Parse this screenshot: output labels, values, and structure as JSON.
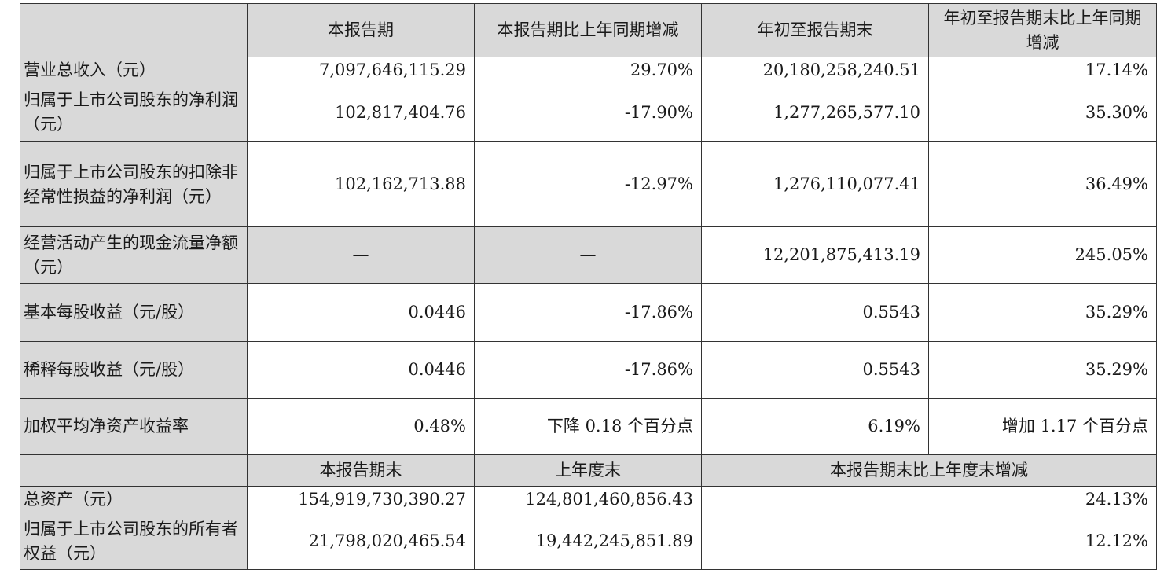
{
  "header": {
    "col1": "本报告期",
    "col2": "本报告期比上年同期增减",
    "col3": "年初至报告期末",
    "col4": "年初至报告期末比上年同期增减"
  },
  "rows": [
    {
      "label": "营业总收入（元）",
      "v1": "7,097,646,115.29",
      "v2": "29.70%",
      "v3": "20,180,258,240.51",
      "v4": "17.14%"
    },
    {
      "label": "归属于上市公司股东的净利润（元）",
      "v1": "102,817,404.76",
      "v2": "-17.90%",
      "v3": "1,277,265,577.10",
      "v4": "35.30%"
    },
    {
      "label": "归属于上市公司股东的扣除非经常性损益的净利润（元）",
      "v1": "102,162,713.88",
      "v2": "-12.97%",
      "v3": "1,276,110,077.41",
      "v4": "36.49%"
    },
    {
      "label": "经营活动产生的现金流量净额（元）",
      "v1": "—",
      "v2": "—",
      "v3": "12,201,875,413.19",
      "v4": "245.05%"
    },
    {
      "label": "基本每股收益（元/股）",
      "v1": "0.0446",
      "v2": "-17.86%",
      "v3": "0.5543",
      "v4": "35.29%"
    },
    {
      "label": "稀释每股收益（元/股）",
      "v1": "0.0446",
      "v2": "-17.86%",
      "v3": "0.5543",
      "v4": "35.29%"
    },
    {
      "label": "加权平均净资产收益率",
      "v1": "0.48%",
      "v2": "下降 0.18 个百分点",
      "v3": "6.19%",
      "v4": "增加 1.17 个百分点"
    }
  ],
  "header2": {
    "col1": "本报告期末",
    "col2": "上年度末",
    "col3": "本报告期末比上年度末增减"
  },
  "rows2": [
    {
      "label": "总资产（元）",
      "v1": "154,919,730,390.27",
      "v2": "124,801,460,856.43",
      "v3": "24.13%"
    },
    {
      "label": "归属于上市公司股东的所有者权益（元）",
      "v1": "21,798,020,465.54",
      "v2": "19,442,245,851.89",
      "v3": "12.12%"
    }
  ]
}
